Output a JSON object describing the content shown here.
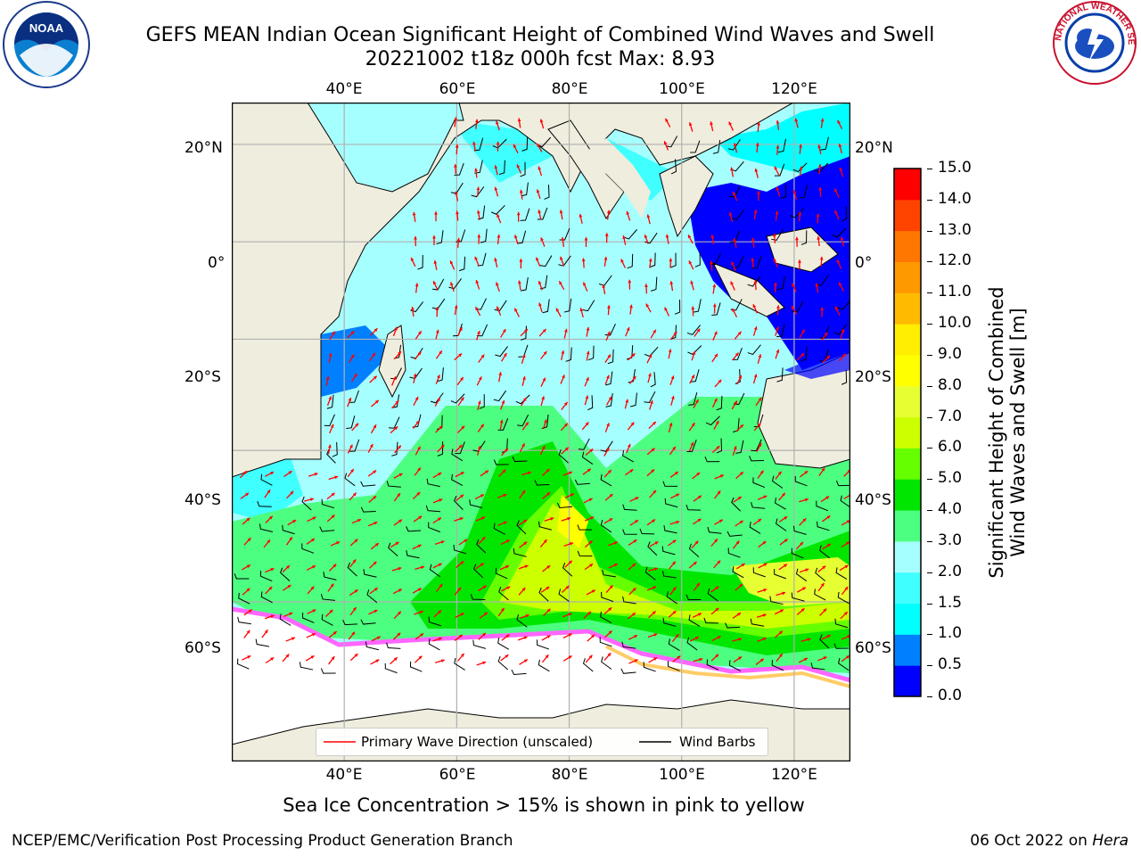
{
  "title_line1": "GEFS MEAN Indian Ocean Significant Height of Combined Wind Waves and Swell",
  "title_line2": "20221002 t18z 000h fcst   Max: 8.93",
  "logo_left": {
    "name": "noaa-logo",
    "text": "NOAA",
    "ring_text": "NATIONAL OCEANIC AND ATMOSPHERIC ADMINISTRATION · U.S. DEPARTMENT OF COMMERCE"
  },
  "logo_right": {
    "name": "nws-logo",
    "ring_text": "NATIONAL WEATHER SERVICE"
  },
  "map": {
    "lon_labels_top": [
      "40°E",
      "60°E",
      "80°E",
      "100°E",
      "120°E"
    ],
    "lon_labels_bottom": [
      "40°E",
      "60°E",
      "80°E",
      "100°E",
      "120°E"
    ],
    "lat_labels_left": [
      "20°N",
      "0°",
      "20°S",
      "40°S",
      "60°S"
    ],
    "lat_labels_right": [
      "20°N",
      "0°",
      "20°S",
      "40°S",
      "60°S"
    ],
    "lon_range": [
      20,
      130
    ],
    "lat_range": [
      -73,
      28
    ],
    "land_color": "#efedde",
    "ice_colors": [
      "#ff66ff",
      "#ff99cc",
      "#ffcc66",
      "#ffff66"
    ]
  },
  "legend": {
    "wave_label": "Primary Wave Direction (unscaled)",
    "wave_color": "#ff0000",
    "barb_label": "Wind Barbs",
    "barb_color": "#000000"
  },
  "colorbar": {
    "label": "Significant Height of Combined Wind Waves and Swell [m]",
    "label_line1": "Significant Height of Combined",
    "label_line2": "Wind Waves and Swell [m]",
    "ticks": [
      "15.0",
      "14.0",
      "13.0",
      "12.0",
      "11.0",
      "10.0",
      "9.0",
      "8.0",
      "7.0",
      "6.0",
      "5.0",
      "4.0",
      "3.0",
      "2.0",
      "1.5",
      "1.0",
      "0.5",
      "0.0"
    ],
    "bins": [
      {
        "from": 0.0,
        "to": 0.5,
        "color": "#0000ff"
      },
      {
        "from": 0.5,
        "to": 1.0,
        "color": "#0080ff"
      },
      {
        "from": 1.0,
        "to": 1.5,
        "color": "#00ffff"
      },
      {
        "from": 1.5,
        "to": 2.0,
        "color": "#40ffff"
      },
      {
        "from": 2.0,
        "to": 3.0,
        "color": "#a6ffff"
      },
      {
        "from": 3.0,
        "to": 4.0,
        "color": "#4dff80"
      },
      {
        "from": 4.0,
        "to": 5.0,
        "color": "#00e600"
      },
      {
        "from": 5.0,
        "to": 6.0,
        "color": "#66ff00"
      },
      {
        "from": 6.0,
        "to": 7.0,
        "color": "#ccff00"
      },
      {
        "from": 7.0,
        "to": 8.0,
        "color": "#e6ff33"
      },
      {
        "from": 8.0,
        "to": 9.0,
        "color": "#ffff00"
      },
      {
        "from": 9.0,
        "to": 10.0,
        "color": "#ffee00"
      },
      {
        "from": 10.0,
        "to": 11.0,
        "color": "#ffbb00"
      },
      {
        "from": 11.0,
        "to": 12.0,
        "color": "#ff9900"
      },
      {
        "from": 12.0,
        "to": 13.0,
        "color": "#ff7700"
      },
      {
        "from": 13.0,
        "to": 14.0,
        "color": "#ff4400"
      },
      {
        "from": 14.0,
        "to": 15.0,
        "color": "#ff0000"
      }
    ]
  },
  "caption": "Sea Ice Concentration > 15% is shown in pink to yellow",
  "credit_left": "NCEP/EMC/Verification Post Processing Product Generation Branch",
  "credit_right_prefix": "06 Oct 2022 on ",
  "credit_right_machine": "Hera"
}
